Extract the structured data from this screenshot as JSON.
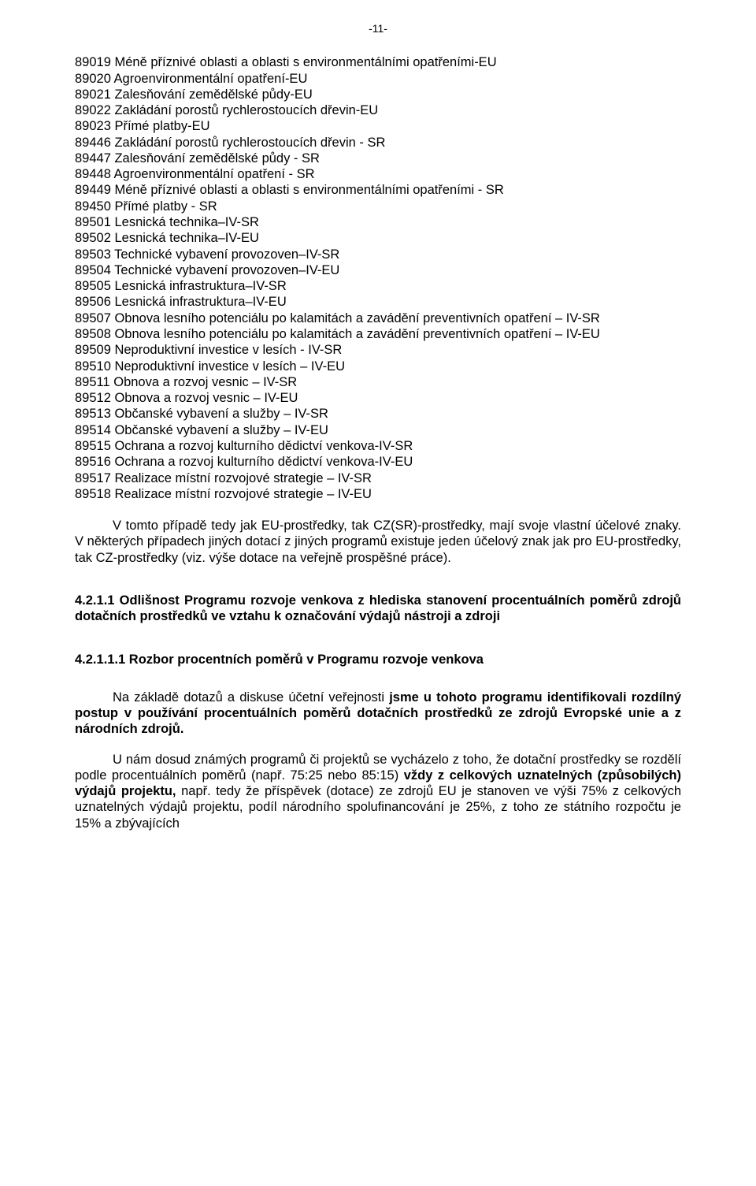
{
  "page_number": "-11-",
  "codes": [
    "89019 Méně příznivé oblasti a oblasti s environmentálními opatřeními-EU",
    "89020 Agroenvironmentální opatření-EU",
    "89021 Zalesňování zemědělské půdy-EU",
    "89022 Zakládání porostů rychlerostoucích dřevin-EU",
    "89023 Přímé platby-EU",
    "89446 Zakládání porostů rychlerostoucích dřevin - SR",
    "89447 Zalesňování zemědělské půdy - SR",
    "89448 Agroenvironmentální opatření - SR",
    "89449 Méně příznivé oblasti a oblasti s environmentálními opatřeními - SR",
    "89450 Přímé platby - SR",
    "89501 Lesnická technika–IV-SR",
    "89502 Lesnická technika–IV-EU",
    "89503 Technické vybavení provozoven–IV-SR",
    "89504 Technické vybavení provozoven–IV-EU",
    "89505 Lesnická infrastruktura–IV-SR",
    "89506 Lesnická infrastruktura–IV-EU",
    "89507 Obnova lesního potenciálu po kalamitách a zavádění preventivních opatření – IV-SR",
    "89508 Obnova lesního potenciálu po kalamitách a zavádění preventivních opatření – IV-EU",
    "89509 Neproduktivní investice v lesích - IV-SR",
    "89510 Neproduktivní investice v lesích – IV-EU",
    "89511 Obnova a rozvoj vesnic – IV-SR",
    "89512 Obnova a rozvoj vesnic – IV-EU",
    "89513 Občanské vybavení a služby – IV-SR",
    "89514 Občanské vybavení a služby – IV-EU",
    "89515 Ochrana a rozvoj kulturního dědictví venkova-IV-SR",
    "89516 Ochrana a rozvoj kulturního dědictví venkova-IV-EU",
    "89517 Realizace místní rozvojové strategie – IV-SR",
    "89518 Realizace místní rozvojové strategie – IV-EU"
  ],
  "para1": "V tomto případě tedy jak EU-prostředky, tak CZ(SR)-prostředky, mají svoje vlastní účelové znaky. V některých případech jiných dotací z jiných programů existuje jeden účelový znak jak pro EU-prostředky, tak CZ-prostředky (viz. výše dotace na veřejně prospěšné práce).",
  "heading_4211": "4.2.1.1 Odlišnost Programu rozvoje venkova z hlediska stanovení procentuálních poměrů zdrojů dotačních prostředků ve vztahu k označování výdajů nástroji a zdroji",
  "heading_42111": "4.2.1.1.1 Rozbor procentních poměrů v Programu rozvoje venkova",
  "para2_pre": "Na základě dotazů a diskuse účetní veřejnosti ",
  "para2_bold": "jsme u tohoto programu identifikovali rozdílný postup v používání procentuálních poměrů dotačních prostředků ze zdrojů Evropské unie a z národních zdrojů.",
  "para3_pre": "U nám dosud známých programů či projektů se vycházelo z toho, že dotační prostředky se rozdělí podle procentuálních poměrů (např. 75:25 nebo 85:15) ",
  "para3_bold": "vždy z celkových uznatelných (způsobilých) výdajů projektu, ",
  "para3_post": "např. tedy že příspěvek (dotace) ze zdrojů EU je stanoven ve výši 75% z celkových uznatelných výdajů projektu, podíl národního spolufinancování je 25%, z toho ze státního rozpočtu je 15% a zbývajících"
}
